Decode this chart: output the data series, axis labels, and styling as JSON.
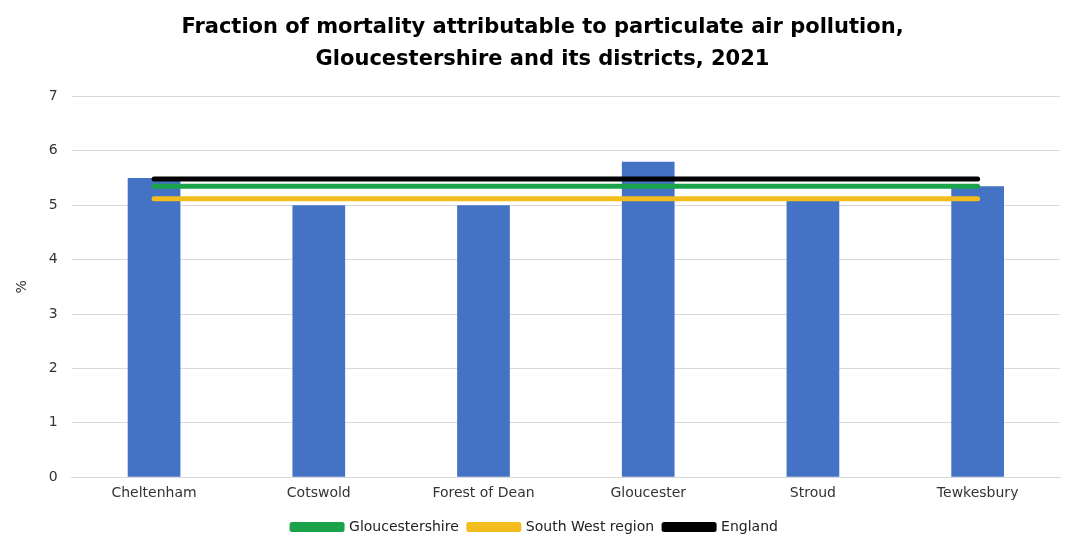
{
  "chart_data": {
    "type": "bar",
    "title": "Fraction of mortality attributable to particulate air pollution, Gloucestershire and its districts, 2021",
    "ylabel": "%",
    "categories": [
      "Cheltenham",
      "Cotswold",
      "Forest of Dean",
      "Gloucester",
      "Stroud",
      "Tewkesbury"
    ],
    "series": [
      {
        "color": "#4472c4",
        "values": [
          5.5,
          5.0,
          5.0,
          5.8,
          5.1,
          5.35
        ]
      },
      {
        "type": "line",
        "name": "Gloucestershire",
        "color": "#1aa34a",
        "values": [
          5.35,
          5.35,
          5.35,
          5.35,
          5.35,
          5.35
        ]
      },
      {
        "type": "line",
        "name": "South West region",
        "color": "#f2bd1d",
        "values": [
          5.12,
          5.12,
          5.12,
          5.12,
          5.12,
          5.12
        ]
      },
      {
        "type": "line",
        "name": "England",
        "color": "#000000",
        "values": [
          5.48,
          5.48,
          5.48,
          5.48,
          5.48,
          5.48
        ]
      }
    ],
    "ylim": [
      0,
      7
    ],
    "yticks": [
      0,
      1,
      2,
      3,
      4,
      5,
      6,
      7
    ],
    "grid": "y",
    "legend": "bottom",
    "marker": "none",
    "line_style": "solid"
  }
}
